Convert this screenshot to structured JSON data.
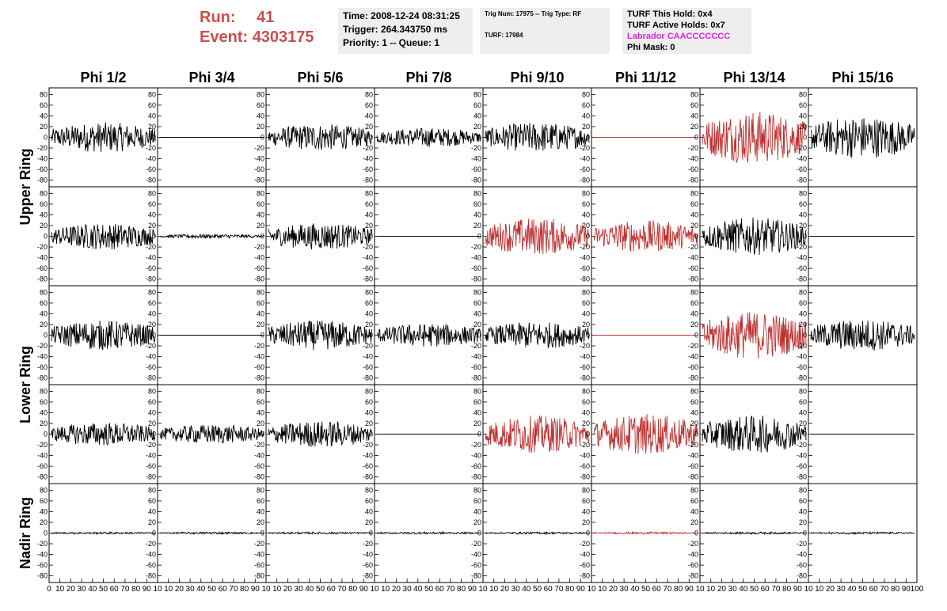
{
  "header": {
    "run_label": "Run:",
    "run_value": "41",
    "event_label": "Event:",
    "event_value": "4303175",
    "time": "Time: 2008-12-24 08:31:25",
    "trigger": "Trigger: 264.343750 ms",
    "priority": "Priority: 1 -- Queue: 1",
    "trig_num": "Trig Num: 17975 -- Trig Type: RF",
    "turf": "TURF: 17984",
    "turf_this_hold": "TURF This Hold: 0x4",
    "turf_active_holds": "TURF Active Holds: 0x7",
    "labrador": "Labrador CAACCCCCCC",
    "phi_mask": "Phi Mask: 0"
  },
  "colors": {
    "red_accent": "#c8504f",
    "trace_red": "#c03030",
    "trace_black": "#000000",
    "magenta": "#e020e0"
  },
  "chart_data": {
    "type": "line",
    "columns": [
      "Phi 1/2",
      "Phi 3/4",
      "Phi 5/6",
      "Phi 7/8",
      "Phi 9/10",
      "Phi 11/12",
      "Phi 13/14",
      "Phi 15/16"
    ],
    "ring_labels": [
      "Upper Ring",
      "Lower Ring",
      "Nadir Ring"
    ],
    "ylim": [
      -85,
      85
    ],
    "yticks": [
      -80,
      -60,
      -40,
      -20,
      0,
      20,
      40,
      60,
      80
    ],
    "xlim": [
      0,
      100
    ],
    "xticks": [
      0,
      10,
      20,
      30,
      40,
      50,
      60,
      70,
      80,
      90,
      100
    ],
    "first_x_tick": "0",
    "last_x_tick": "100",
    "traces": [
      [
        {
          "amp": 28,
          "color": "black"
        },
        {
          "amp": 0,
          "color": "black"
        },
        {
          "amp": 25,
          "color": "black"
        },
        {
          "amp": 18,
          "color": "black"
        },
        {
          "amp": 28,
          "color": "black"
        },
        {
          "amp": 0,
          "color": "red"
        },
        {
          "amp": 50,
          "color": "red"
        },
        {
          "amp": 40,
          "color": "black"
        }
      ],
      [
        {
          "amp": 25,
          "color": "black"
        },
        {
          "amp": 4,
          "color": "black"
        },
        {
          "amp": 25,
          "color": "black"
        },
        {
          "amp": 0,
          "color": "black"
        },
        {
          "amp": 35,
          "color": "red"
        },
        {
          "amp": 30,
          "color": "red"
        },
        {
          "amp": 35,
          "color": "black"
        },
        {
          "amp": 0,
          "color": "black"
        }
      ],
      [
        {
          "amp": 28,
          "color": "black"
        },
        {
          "amp": 0,
          "color": "black"
        },
        {
          "amp": 28,
          "color": "black"
        },
        {
          "amp": 22,
          "color": "black"
        },
        {
          "amp": 25,
          "color": "black"
        },
        {
          "amp": 0,
          "color": "red"
        },
        {
          "amp": 45,
          "color": "red"
        },
        {
          "amp": 30,
          "color": "black"
        }
      ],
      [
        {
          "amp": 22,
          "color": "black"
        },
        {
          "amp": 18,
          "color": "black"
        },
        {
          "amp": 25,
          "color": "black"
        },
        {
          "amp": 0,
          "color": "black"
        },
        {
          "amp": 35,
          "color": "red"
        },
        {
          "amp": 38,
          "color": "red"
        },
        {
          "amp": 35,
          "color": "black"
        },
        {
          "amp": 0,
          "color": "black"
        }
      ],
      [
        {
          "amp": 2,
          "color": "black"
        },
        {
          "amp": 2,
          "color": "black"
        },
        {
          "amp": 2,
          "color": "black"
        },
        {
          "amp": 2,
          "color": "black"
        },
        {
          "amp": 2,
          "color": "black"
        },
        {
          "amp": 2,
          "color": "red"
        },
        {
          "amp": 2,
          "color": "black"
        },
        {
          "amp": 2,
          "color": "black"
        }
      ]
    ]
  }
}
